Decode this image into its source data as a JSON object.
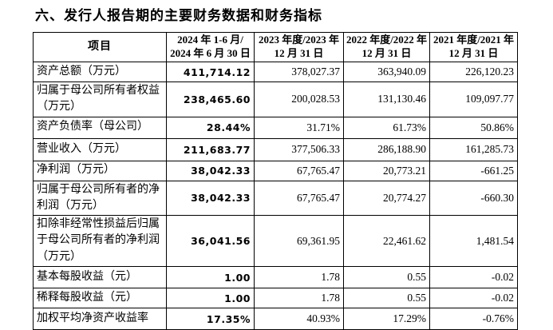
{
  "page": {
    "title": "六、发行人报告期的主要财务数据和财务指标"
  },
  "table": {
    "columns": [
      {
        "label": "项目"
      },
      {
        "line1": "2024 年 1-6 月/",
        "line2": "2024 年 6 月 30 日"
      },
      {
        "line1": "2023 年度/2023 年",
        "line2": "12 月 31 日"
      },
      {
        "line1": "2022 年度/2022 年",
        "line2": "12 月 31 日"
      },
      {
        "line1": "2021 年度/2021 年",
        "line2": "12 月 31 日"
      }
    ],
    "rows": [
      {
        "label": "资产总额（万元）",
        "values": [
          "411,714.12",
          "378,027.37",
          "363,940.09",
          "226,120.23"
        ]
      },
      {
        "label": "归属于母公司所有者权益（万元）",
        "values": [
          "238,465.60",
          "200,028.53",
          "131,130.46",
          "109,097.77"
        ]
      },
      {
        "label": "资产负债率（母公司）",
        "values": [
          "28.44%",
          "31.71%",
          "61.73%",
          "50.86%"
        ]
      },
      {
        "label": "营业收入（万元）",
        "values": [
          "211,683.77",
          "377,506.33",
          "286,188.90",
          "161,285.73"
        ]
      },
      {
        "label": "净利润（万元）",
        "values": [
          "38,042.33",
          "67,765.47",
          "20,773.21",
          "-661.25"
        ]
      },
      {
        "label": "归属于母公司所有者的净利润（万元）",
        "values": [
          "38,042.33",
          "67,765.47",
          "20,774.27",
          "-660.30"
        ]
      },
      {
        "label": "扣除非经常性损益后归属于母公司所有者的净利润（万元）",
        "values": [
          "36,041.56",
          "69,361.95",
          "22,461.62",
          "1,481.54"
        ]
      },
      {
        "label": "基本每股收益（元）",
        "values": [
          "1.00",
          "1.78",
          "0.55",
          "-0.02"
        ]
      },
      {
        "label": "稀释每股收益（元）",
        "values": [
          "1.00",
          "1.78",
          "0.55",
          "-0.02"
        ]
      },
      {
        "label": "加权平均净资产收益率",
        "values": [
          "17.35%",
          "40.93%",
          "17.29%",
          "-0.76%"
        ]
      }
    ]
  }
}
